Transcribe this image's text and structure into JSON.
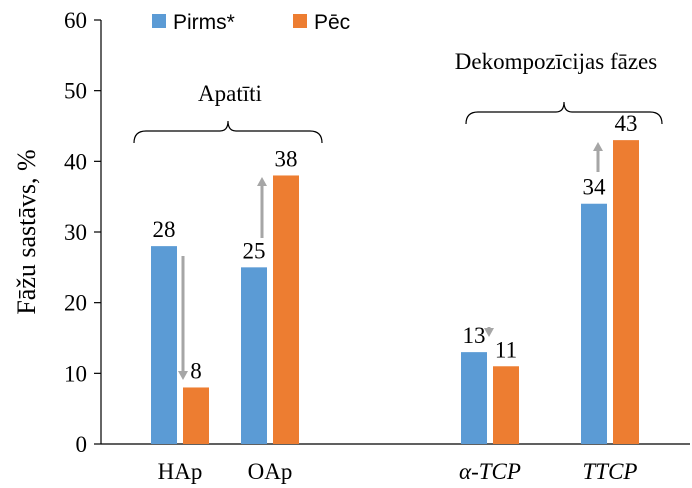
{
  "chart_data": {
    "type": "bar",
    "ylabel": "Fāžu sastāvs, %",
    "ylim": [
      0,
      60
    ],
    "yticks": [
      "0",
      "10",
      "20",
      "30",
      "40",
      "50",
      "60"
    ],
    "categories": [
      "HAp",
      "OAp",
      "α-TCP",
      "TTCP"
    ],
    "series": [
      {
        "name": "Pirms*",
        "values": [
          28,
          25,
          13,
          34
        ],
        "labels": [
          "28",
          "25",
          "13",
          "34"
        ],
        "color": "#5b9bd5"
      },
      {
        "name": "Pēc",
        "values": [
          8,
          38,
          11,
          43
        ],
        "labels": [
          "8",
          "38",
          "11",
          "43"
        ],
        "color": "#ed7d31"
      }
    ],
    "groups": [
      {
        "label": "Apatīti",
        "categories": [
          "HAp",
          "OAp"
        ]
      },
      {
        "label": "Dekompozīcijas fāzes",
        "categories": [
          "α-TCP",
          "TTCP"
        ]
      }
    ],
    "change_arrows": [
      {
        "category": "HAp",
        "direction": "down"
      },
      {
        "category": "OAp",
        "direction": "up"
      },
      {
        "category": "α-TCP",
        "direction": "down"
      },
      {
        "category": "TTCP",
        "direction": "up"
      }
    ],
    "legend_position": "top-left",
    "grid": false
  }
}
